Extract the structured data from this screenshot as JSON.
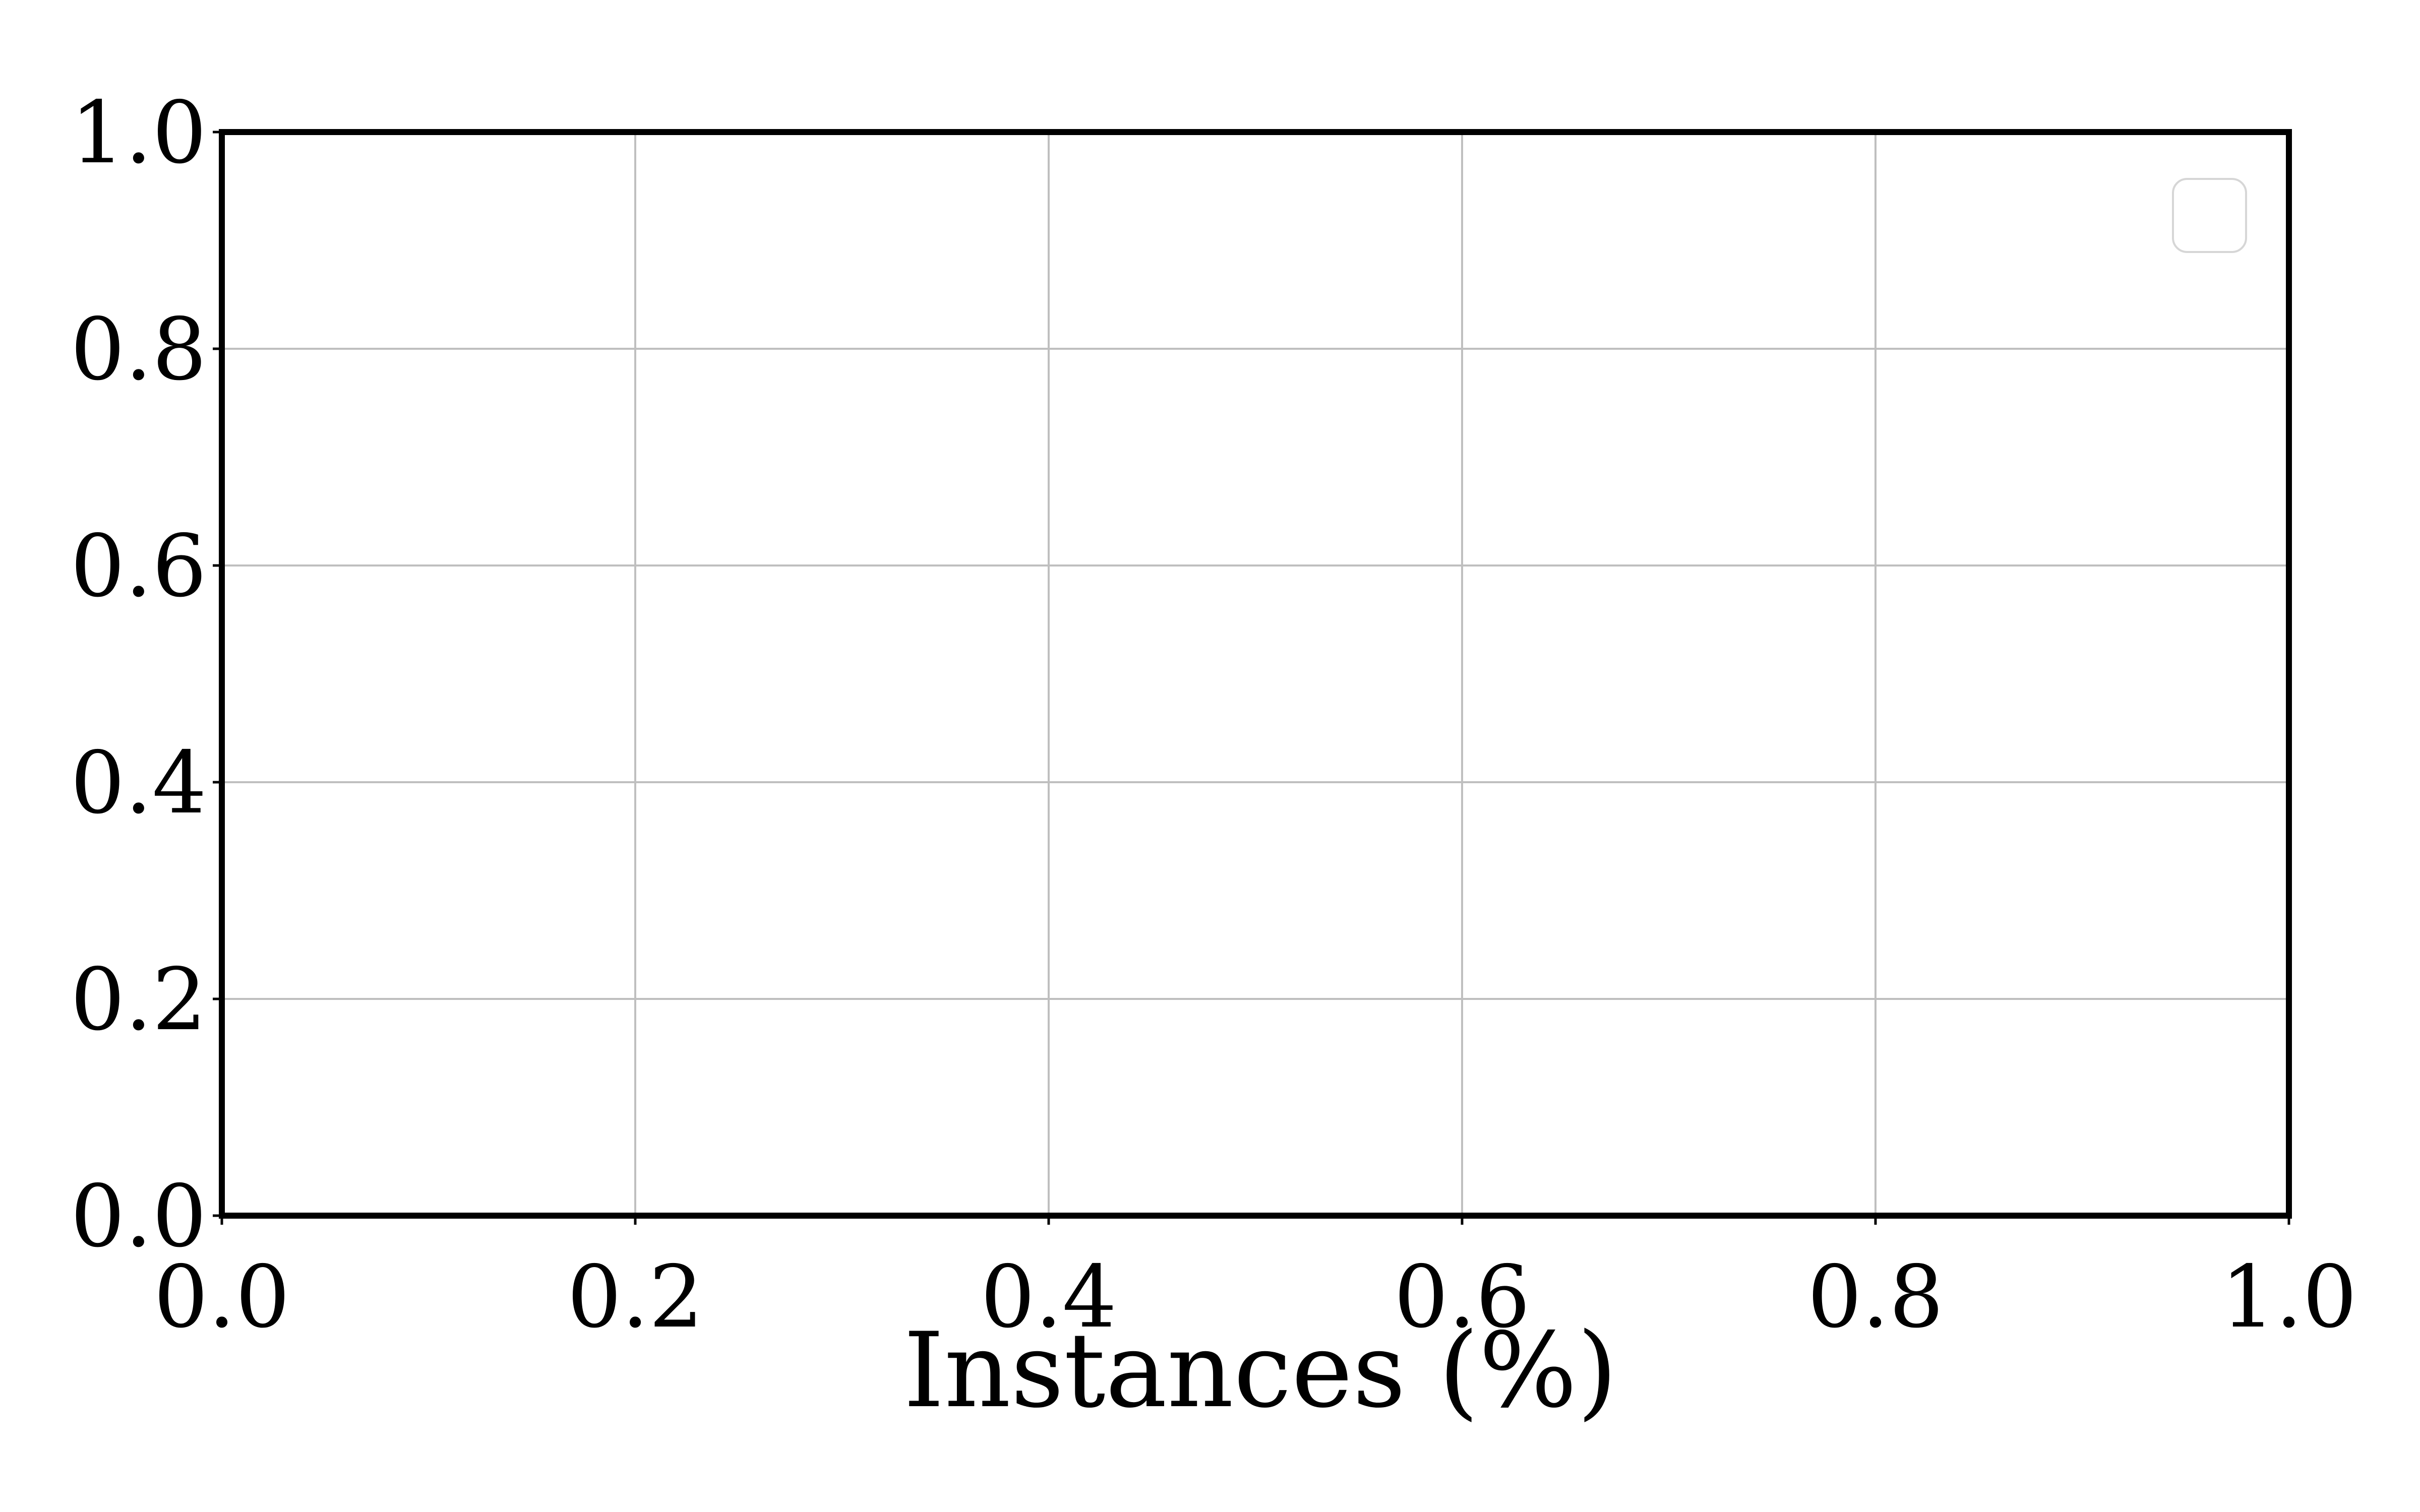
{
  "chart_data": {
    "type": "line",
    "title": "",
    "xlabel": "Instances (%)",
    "ylabel": "",
    "xlim": [
      0.0,
      1.0
    ],
    "ylim": [
      0.0,
      1.0
    ],
    "x_ticks": [
      0.0,
      0.2,
      0.4,
      0.6,
      0.8,
      1.0
    ],
    "y_ticks": [
      0.0,
      0.2,
      0.4,
      0.6,
      0.8,
      1.0
    ],
    "x_tick_labels": [
      "0.0",
      "0.2",
      "0.4",
      "0.6",
      "0.8",
      "1.0"
    ],
    "y_tick_labels": [
      "0.0",
      "0.2",
      "0.4",
      "0.6",
      "0.8",
      "1.0"
    ],
    "grid": true,
    "legend": {
      "placement": "top-right",
      "entries": []
    },
    "series": [],
    "colors": {
      "axes": "#000000",
      "grid": "#bfbfbf",
      "legend_border": "#d6d6d6"
    }
  }
}
